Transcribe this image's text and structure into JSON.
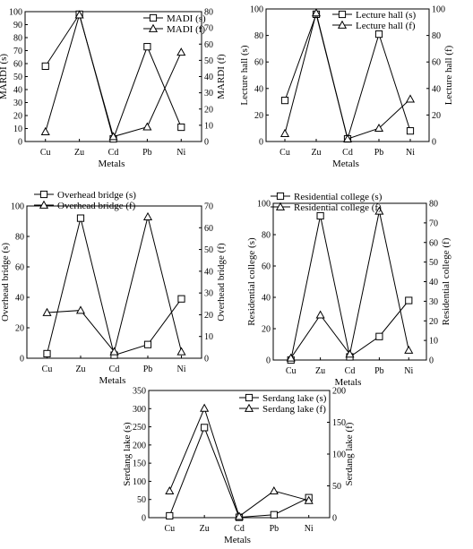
{
  "chart_data": [
    {
      "type": "line",
      "categories": [
        "Cu",
        "Zu",
        "Cd",
        "Pb",
        "Ni"
      ],
      "xlabel": "Metals",
      "ylabel_left": "MARDI (s)",
      "ylabel_right": "MARDI (f)",
      "ylim_left": [
        0,
        100
      ],
      "ylim_right": [
        0,
        80
      ],
      "yticks_left": [
        0,
        10,
        20,
        30,
        40,
        50,
        60,
        70,
        80,
        90,
        100
      ],
      "yticks_right": [
        0,
        10,
        20,
        30,
        40,
        50,
        60,
        70,
        80
      ],
      "legend_position": "top-right",
      "grid": false,
      "series": [
        {
          "name": "MADI (s)",
          "axis": "left",
          "marker": "square",
          "values": [
            58,
            98,
            2,
            73,
            11
          ]
        },
        {
          "name": "MADI (f)",
          "axis": "right",
          "marker": "triangle",
          "values": [
            6,
            78,
            3,
            9,
            55
          ]
        }
      ]
    },
    {
      "type": "line",
      "categories": [
        "Cu",
        "Zu",
        "Cd",
        "Pb",
        "Ni"
      ],
      "xlabel": "Metals",
      "ylabel_left": "Lecture hall (s)",
      "ylabel_right": "Lecture hall (f)",
      "ylim_left": [
        0,
        100
      ],
      "ylim_right": [
        0,
        100
      ],
      "yticks_left": [
        0,
        20,
        40,
        60,
        80,
        100
      ],
      "yticks_right": [
        0,
        20,
        40,
        60,
        80,
        100
      ],
      "legend_position": "top-right",
      "grid": false,
      "series": [
        {
          "name": "Lecture hall (s)",
          "axis": "left",
          "marker": "square",
          "values": [
            31,
            96,
            2,
            81,
            8
          ]
        },
        {
          "name": "Lecture hall (f)",
          "axis": "right",
          "marker": "triangle",
          "values": [
            6,
            97,
            2,
            10,
            32
          ]
        }
      ]
    },
    {
      "type": "line",
      "categories": [
        "Cu",
        "Zu",
        "Cd",
        "Pb",
        "Ni"
      ],
      "xlabel": "Metals",
      "ylabel_left": "Overhead bridge (s)",
      "ylabel_right": "Overhead bridge (f)",
      "ylim_left": [
        0,
        100
      ],
      "ylim_right": [
        0,
        70
      ],
      "yticks_left": [
        0,
        20,
        40,
        60,
        80,
        100
      ],
      "yticks_right": [
        0,
        10,
        20,
        30,
        40,
        50,
        60,
        70
      ],
      "legend_position": "top-left",
      "grid": false,
      "series": [
        {
          "name": "Overhead bridge (s)",
          "axis": "left",
          "marker": "square",
          "values": [
            3,
            92,
            2,
            9,
            39
          ]
        },
        {
          "name": "Overhead bridge (f)",
          "axis": "right",
          "marker": "triangle",
          "values": [
            21,
            22,
            3,
            65,
            3
          ]
        }
      ]
    },
    {
      "type": "line",
      "categories": [
        "Cu",
        "Zu",
        "Cd",
        "Pb",
        "Ni"
      ],
      "xlabel": "Metals",
      "ylabel_left": "Residential college (s)",
      "ylabel_right": "Residential college (f)",
      "ylim_left": [
        0,
        100
      ],
      "ylim_right": [
        0,
        80
      ],
      "yticks_left": [
        0,
        20,
        40,
        60,
        80,
        100
      ],
      "yticks_right": [
        0,
        10,
        20,
        30,
        40,
        50,
        60,
        70,
        80
      ],
      "legend_position": "top",
      "grid": false,
      "series": [
        {
          "name": "Residential college (s)",
          "axis": "left",
          "marker": "square",
          "values": [
            0,
            92,
            2,
            15,
            38
          ]
        },
        {
          "name": "Residential college (f)",
          "axis": "right",
          "marker": "triangle",
          "values": [
            1,
            23,
            3,
            76,
            5
          ]
        }
      ]
    },
    {
      "type": "line",
      "categories": [
        "Cu",
        "Zu",
        "Cd",
        "Pb",
        "Ni"
      ],
      "xlabel": "Metals",
      "ylabel_left": "Serdang lake (s)",
      "ylabel_right": "Serdang lake (f)",
      "ylim_left": [
        0,
        350
      ],
      "ylim_right": [
        0,
        200
      ],
      "yticks_left": [
        0,
        50,
        100,
        150,
        200,
        250,
        300,
        350
      ],
      "yticks_right": [
        0,
        50,
        100,
        150,
        200
      ],
      "legend_position": "top-right",
      "grid": false,
      "series": [
        {
          "name": "Serdang lake (s)",
          "axis": "left",
          "marker": "square",
          "values": [
            5,
            248,
            1,
            8,
            55
          ]
        },
        {
          "name": "Serdang lake (f)",
          "axis": "right",
          "marker": "triangle",
          "values": [
            42,
            172,
            2,
            42,
            27
          ]
        }
      ]
    }
  ]
}
